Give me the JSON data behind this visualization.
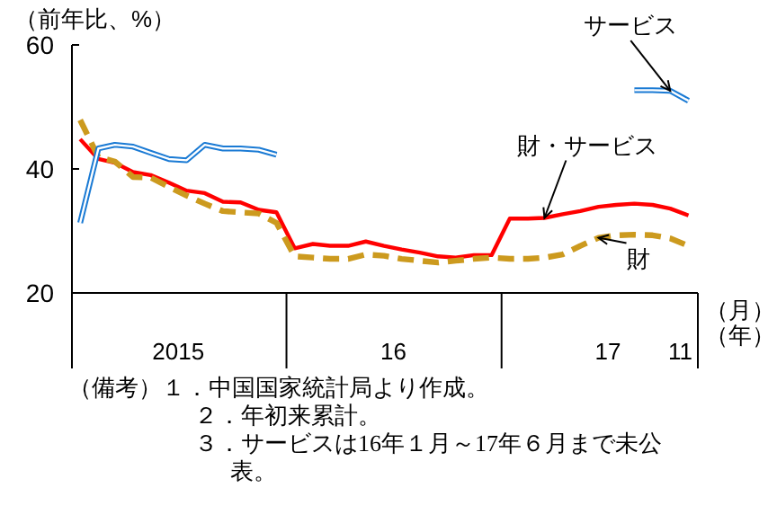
{
  "chart_data": {
    "type": "line",
    "ylabel": "（前年比、%）",
    "xlabel": "（月）（年）",
    "x": [
      "2015-01-15",
      "2015-02-15",
      "2015-03-15",
      "2015-04-15",
      "2015-05-15",
      "2015-06-15",
      "2015-07-15",
      "2015-08-15",
      "2015-09-15",
      "2015-10-15",
      "2015-11-15",
      "2015-12-15",
      "2016-01-15",
      "2016-02-15",
      "2016-03-15",
      "2016-04-15",
      "2016-05-15",
      "2016-06-15",
      "2016-07-15",
      "2016-08-15",
      "2016-09-15",
      "2016-10-15",
      "2016-11-15",
      "2016-12-15",
      "2017-01-15",
      "2017-02-15",
      "2017-03-15",
      "2017-04-15",
      "2017-05-15",
      "2017-06-15",
      "2017-07-15",
      "2017-08-15",
      "2017-09-15",
      "2017-10-15",
      "2017-11-15"
    ],
    "xlim": [
      "2015-01-01",
      "2017-12-01"
    ],
    "xticks": [
      {
        "value": "2015-07-01",
        "label": "2015"
      },
      {
        "value": "2016-07-01",
        "label": "16"
      },
      {
        "value": "2017-07-01",
        "label": "17"
      },
      {
        "value": "2017-11-15",
        "label": "11"
      }
    ],
    "ylim": [
      20,
      60
    ],
    "yticks": [
      20,
      40,
      60
    ],
    "grid": false,
    "legend": false,
    "series": [
      {
        "name": "財・サービス",
        "color": "#ff0000",
        "line_style": "solid",
        "values": [
          44.8,
          41.6,
          41.0,
          39.5,
          39.0,
          37.8,
          36.5,
          36.1,
          34.7,
          34.6,
          33.4,
          33.0,
          27.2,
          27.9,
          27.6,
          27.6,
          28.3,
          27.6,
          27.0,
          26.5,
          25.9,
          25.7,
          26.1,
          26.1,
          32.0,
          32.0,
          32.1,
          32.7,
          33.2,
          33.9,
          34.2,
          34.4,
          34.2,
          33.6,
          32.5
        ]
      },
      {
        "name": "財",
        "color": "#cc9a1e",
        "line_style": "dashed",
        "values": [
          47.9,
          41.9,
          41.2,
          38.7,
          38.6,
          37.1,
          35.7,
          34.4,
          33.2,
          33.0,
          32.8,
          31.3,
          25.9,
          25.7,
          25.5,
          25.5,
          26.2,
          26.0,
          25.5,
          25.2,
          24.9,
          25.2,
          25.5,
          25.7,
          25.5,
          25.5,
          25.7,
          26.2,
          27.6,
          28.9,
          29.3,
          29.4,
          29.3,
          28.8,
          27.6
        ]
      },
      {
        "name": "サービス",
        "color": "#1a7ad4",
        "line_style": "solid",
        "values": [
          31.3,
          43.3,
          43.9,
          43.6,
          42.6,
          41.6,
          41.4,
          43.9,
          43.3,
          43.3,
          43.1,
          42.3,
          null,
          null,
          null,
          null,
          null,
          null,
          null,
          null,
          null,
          null,
          null,
          null,
          null,
          null,
          null,
          null,
          null,
          null,
          null,
          52.7,
          52.7,
          52.6,
          51.0
        ]
      }
    ],
    "annotations": [
      "（備考）１．中国国家統計局より作成。",
      "２．年初来累計。",
      "３．サービスは16年１月～17年６月まで未公表。"
    ]
  }
}
